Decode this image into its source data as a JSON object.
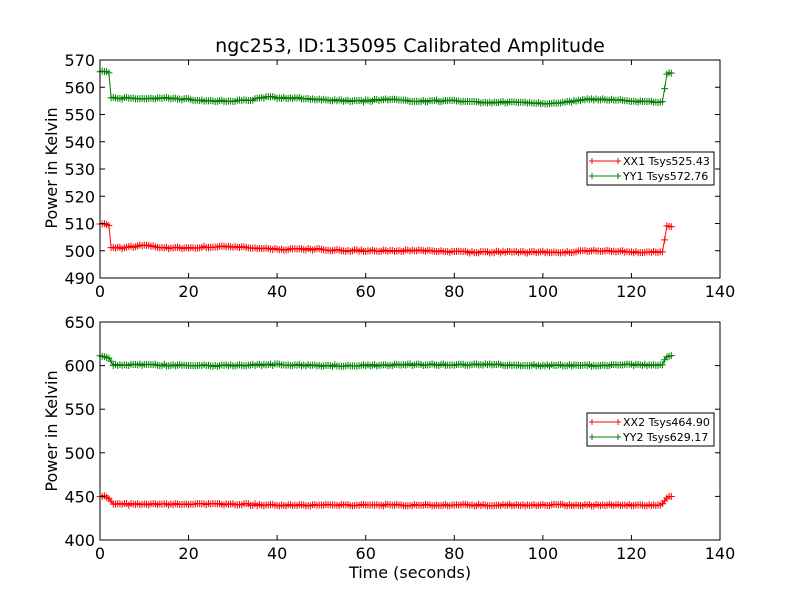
{
  "chart_data": [
    {
      "type": "line",
      "title": "ngc253, ID:135095 Calibrated Amplitude",
      "xlabel": "",
      "ylabel": "Power in Kelvin",
      "xlim": [
        0,
        140
      ],
      "ylim": [
        490,
        570
      ],
      "xticks": [
        "0",
        "20",
        "40",
        "60",
        "80",
        "100",
        "120",
        "140"
      ],
      "yticks": [
        "490",
        "500",
        "510",
        "520",
        "530",
        "540",
        "550",
        "560",
        "570"
      ],
      "grid": false,
      "legend": "center-right",
      "series": [
        {
          "name": "XX1 Tsys525.43",
          "color": "#ff0000",
          "x": [
            0,
            1,
            2,
            2.5,
            5,
            10,
            15,
            20,
            25,
            30,
            35,
            40,
            45,
            50,
            55,
            60,
            65,
            70,
            75,
            80,
            85,
            90,
            95,
            100,
            105,
            110,
            115,
            120,
            125,
            127,
            128,
            129
          ],
          "y": [
            510,
            510,
            509,
            501,
            501,
            502,
            501,
            501,
            501.5,
            501.5,
            501,
            500.5,
            500.5,
            500.5,
            500,
            500,
            500,
            500,
            500,
            499.5,
            499.5,
            499.5,
            499.5,
            499.5,
            499.5,
            500,
            500,
            499.5,
            499.5,
            499.5,
            509,
            509
          ]
        },
        {
          "name": "YY1 Tsys572.76",
          "color": "#008000",
          "x": [
            0,
            1,
            2,
            2.5,
            5,
            10,
            15,
            20,
            25,
            30,
            35,
            38,
            40,
            45,
            50,
            55,
            60,
            65,
            70,
            75,
            80,
            85,
            90,
            95,
            100,
            105,
            110,
            115,
            120,
            125,
            127,
            128,
            129
          ],
          "y": [
            566,
            566,
            565,
            556,
            556,
            556,
            556,
            555.5,
            555,
            555,
            555.5,
            556.5,
            556,
            556,
            555.5,
            555,
            555,
            555.5,
            555,
            555,
            555,
            554.5,
            554.5,
            554.5,
            554,
            554.5,
            555.5,
            555.5,
            555,
            554.5,
            554.5,
            565,
            565
          ]
        }
      ]
    },
    {
      "type": "line",
      "title": "",
      "xlabel": "Time (seconds)",
      "ylabel": "Power in Kelvin",
      "xlim": [
        0,
        140
      ],
      "ylim": [
        400,
        650
      ],
      "xticks": [
        "0",
        "20",
        "40",
        "60",
        "80",
        "100",
        "120",
        "140"
      ],
      "yticks": [
        "400",
        "450",
        "500",
        "550",
        "600",
        "650"
      ],
      "grid": false,
      "legend": "center-right",
      "series": [
        {
          "name": "XX2 Tsys464.90",
          "color": "#ff0000",
          "x": [
            0,
            1,
            2,
            3,
            10,
            20,
            30,
            40,
            50,
            60,
            70,
            80,
            90,
            100,
            110,
            120,
            126,
            127,
            128,
            129
          ],
          "y": [
            450,
            450,
            448,
            441,
            441,
            441,
            441,
            440,
            440,
            440,
            440,
            440,
            440,
            440,
            440,
            440,
            440,
            441,
            449,
            449
          ]
        },
        {
          "name": "YY2 Tsys629.17",
          "color": "#008000",
          "x": [
            0,
            1,
            2,
            3,
            10,
            20,
            30,
            40,
            50,
            60,
            70,
            80,
            90,
            100,
            110,
            120,
            126,
            127,
            128,
            129
          ],
          "y": [
            611,
            611,
            609,
            601,
            601,
            600,
            600,
            601,
            600,
            600,
            601,
            601,
            601,
            600,
            600,
            601,
            600,
            601,
            611,
            611
          ]
        }
      ]
    }
  ]
}
